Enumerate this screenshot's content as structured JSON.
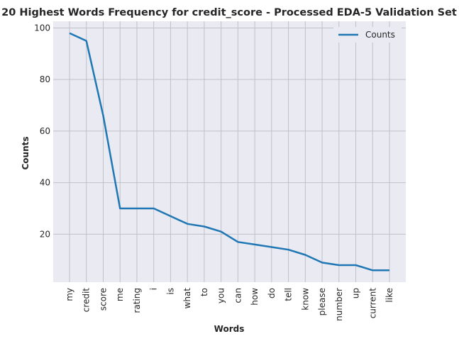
{
  "chart_data": {
    "type": "line",
    "title": "20 Highest Words Frequency for credit_score - Processed EDA-5 Validation Set",
    "xlabel": "Words",
    "ylabel": "Counts",
    "categories": [
      "my",
      "credit",
      "score",
      "me",
      "rating",
      "i",
      "is",
      "what",
      "to",
      "you",
      "can",
      "how",
      "do",
      "tell",
      "know",
      "please",
      "number",
      "up",
      "current",
      "like"
    ],
    "series": [
      {
        "name": "Counts",
        "values": [
          98,
          95,
          66,
          30,
          30,
          30,
          27,
          24,
          23,
          21,
          17,
          16,
          15,
          14,
          12,
          9,
          8,
          8,
          6,
          6
        ]
      }
    ],
    "yticks": [
      20,
      40,
      60,
      80,
      100
    ],
    "ylim": [
      1.4,
      102.6
    ],
    "grid": true,
    "legend": "top-right",
    "colors": {
      "line": "#1f77b4",
      "plot_bg": "#eaeaf2",
      "grid": "#c0c0c8"
    }
  }
}
